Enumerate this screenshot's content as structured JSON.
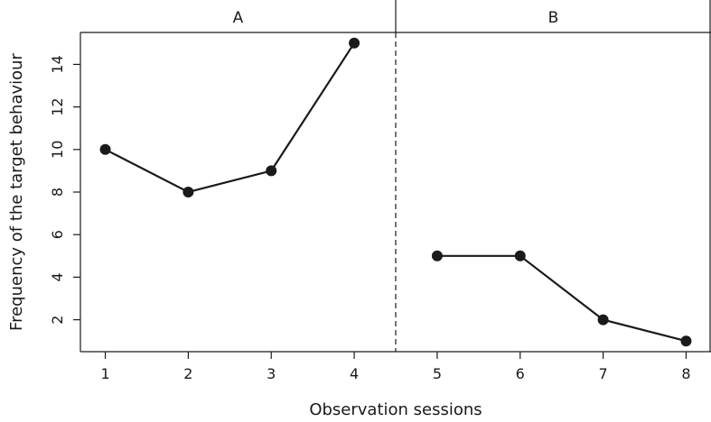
{
  "chart_data": {
    "type": "line",
    "xlabel": "Observation sessions",
    "ylabel": "Frequency of the target behaviour",
    "xticks": [
      1,
      2,
      3,
      4,
      5,
      6,
      7,
      8
    ],
    "yticks": [
      2,
      4,
      6,
      8,
      10,
      12,
      14
    ],
    "xlim": [
      0.7,
      8.3
    ],
    "ylim": [
      0.5,
      15.5
    ],
    "phases": [
      {
        "label": "A",
        "x_range": [
          0.7,
          4.5
        ]
      },
      {
        "label": "B",
        "x_range": [
          4.5,
          8.3
        ]
      }
    ],
    "phase_change_x": 4.5,
    "series": [
      {
        "x": [
          1,
          2,
          3,
          4
        ],
        "y": [
          10,
          8,
          9,
          15
        ]
      },
      {
        "x": [
          5,
          6,
          7,
          8
        ],
        "y": [
          5,
          5,
          2,
          1
        ]
      }
    ],
    "grid": false
  }
}
